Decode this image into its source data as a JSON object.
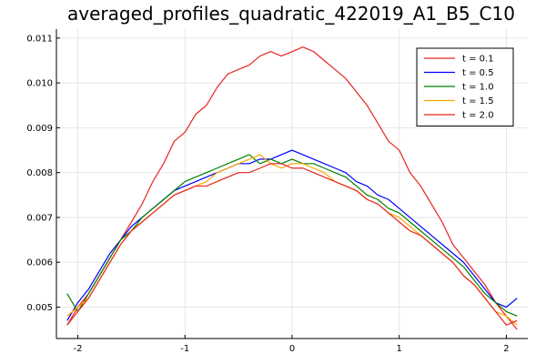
{
  "chart_data": {
    "type": "line",
    "title": "averaged_profiles_quadratic_422019_A1_B5_C10",
    "xlabel": "",
    "ylabel": "",
    "xlim": [
      -2.2,
      2.2
    ],
    "ylim": [
      0.0043,
      0.0112
    ],
    "x_ticks": [
      -2,
      -1,
      0,
      1,
      2
    ],
    "x_tick_labels": [
      "-2",
      "-1",
      "0",
      "1",
      "2"
    ],
    "y_ticks": [
      0.005,
      0.006,
      0.007,
      0.008,
      0.009,
      0.01,
      0.011
    ],
    "y_tick_labels": [
      "0.005",
      "0.006",
      "0.007",
      "0.008",
      "0.009",
      "0.010",
      "0.011"
    ],
    "grid": true,
    "legend_position": "top-right",
    "x": [
      -2.1,
      -2.0,
      -1.9,
      -1.8,
      -1.7,
      -1.6,
      -1.5,
      -1.4,
      -1.3,
      -1.2,
      -1.1,
      -1.0,
      -0.9,
      -0.8,
      -0.7,
      -0.6,
      -0.5,
      -0.4,
      -0.3,
      -0.2,
      -0.1,
      0.0,
      0.1,
      0.2,
      0.3,
      0.4,
      0.5,
      0.6,
      0.7,
      0.8,
      0.9,
      1.0,
      1.1,
      1.2,
      1.3,
      1.4,
      1.5,
      1.6,
      1.7,
      1.8,
      1.9,
      2.0,
      2.1
    ],
    "series": [
      {
        "name": "t = 0.1",
        "color": "#e6261f",
        "values": [
          0.0046,
          0.005,
          0.0053,
          0.0057,
          0.0061,
          0.0065,
          0.0069,
          0.0073,
          0.0078,
          0.0082,
          0.0087,
          0.0089,
          0.0093,
          0.0095,
          0.0099,
          0.0102,
          0.0103,
          0.0104,
          0.0106,
          0.0107,
          0.0106,
          0.0107,
          0.0108,
          0.0107,
          0.0105,
          0.0103,
          0.0101,
          0.0098,
          0.0095,
          0.0091,
          0.0087,
          0.0085,
          0.008,
          0.0077,
          0.0073,
          0.0069,
          0.0064,
          0.0061,
          0.0058,
          0.0055,
          0.0051,
          0.0048,
          0.0045
        ]
      },
      {
        "name": "t = 0.5",
        "color": "#0000ff",
        "values": [
          0.0047,
          0.0051,
          0.0054,
          0.0058,
          0.0062,
          0.0065,
          0.0068,
          0.007,
          0.0072,
          0.0074,
          0.0076,
          0.0077,
          0.0078,
          0.0079,
          0.008,
          0.0081,
          0.0082,
          0.0082,
          0.0083,
          0.0083,
          0.0084,
          0.0085,
          0.0084,
          0.0083,
          0.0082,
          0.0081,
          0.008,
          0.0078,
          0.0077,
          0.0075,
          0.0074,
          0.0072,
          0.007,
          0.0068,
          0.0066,
          0.0064,
          0.0062,
          0.006,
          0.0057,
          0.0054,
          0.0051,
          0.005,
          0.0052
        ]
      },
      {
        "name": "t = 1.0",
        "color": "#008000",
        "values": [
          0.0053,
          0.0049,
          0.0053,
          0.0057,
          0.0061,
          0.0065,
          0.0067,
          0.007,
          0.0072,
          0.0074,
          0.0076,
          0.0078,
          0.0079,
          0.008,
          0.0081,
          0.0082,
          0.0083,
          0.0084,
          0.0082,
          0.0083,
          0.0082,
          0.0083,
          0.0082,
          0.0082,
          0.0081,
          0.008,
          0.0079,
          0.0077,
          0.0075,
          0.0074,
          0.0072,
          0.0071,
          0.0069,
          0.0067,
          0.0065,
          0.0063,
          0.0061,
          0.0059,
          0.0056,
          0.0053,
          0.0051,
          0.0049,
          0.0048
        ]
      },
      {
        "name": "t = 1.5",
        "color": "#ffa500",
        "values": [
          0.0048,
          0.005,
          0.0052,
          0.0056,
          0.006,
          0.0064,
          0.0067,
          0.0069,
          0.0071,
          0.0073,
          0.0075,
          0.0076,
          0.0077,
          0.0078,
          0.008,
          0.0081,
          0.0082,
          0.0083,
          0.0084,
          0.0082,
          0.0081,
          0.0082,
          0.0082,
          0.0081,
          0.008,
          0.0078,
          0.0077,
          0.0076,
          0.0074,
          0.0073,
          0.0071,
          0.007,
          0.0068,
          0.0066,
          0.0064,
          0.0062,
          0.006,
          0.0057,
          0.0055,
          0.0052,
          0.0049,
          0.0048,
          0.0046
        ]
      },
      {
        "name": "t = 2.0",
        "color": "#e6261f",
        "values": [
          0.0046,
          0.0049,
          0.0052,
          0.0056,
          0.006,
          0.0064,
          0.0067,
          0.0069,
          0.0071,
          0.0073,
          0.0075,
          0.0076,
          0.0077,
          0.0077,
          0.0078,
          0.0079,
          0.008,
          0.008,
          0.0081,
          0.0082,
          0.0082,
          0.0081,
          0.0081,
          0.008,
          0.0079,
          0.0078,
          0.0077,
          0.0076,
          0.0074,
          0.0073,
          0.0071,
          0.0069,
          0.0067,
          0.0066,
          0.0064,
          0.0062,
          0.006,
          0.0057,
          0.0055,
          0.0052,
          0.0049,
          0.0046,
          0.0047
        ]
      }
    ]
  }
}
